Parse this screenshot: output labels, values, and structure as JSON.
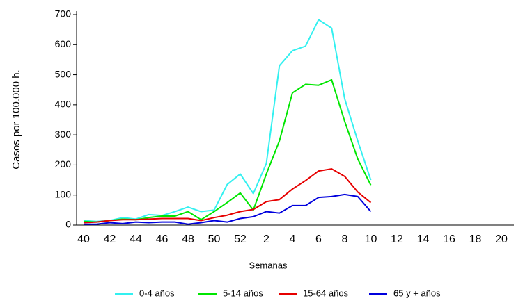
{
  "chart_data": {
    "type": "line",
    "xlabel": "Semanas",
    "ylabel": "Casos por 100.000 h.",
    "categories": [
      "40",
      null,
      "42",
      null,
      "44",
      null,
      "46",
      null,
      "48",
      null,
      "50",
      null,
      "52",
      null,
      "2",
      null,
      "4",
      null,
      "6",
      null,
      "8",
      null,
      "10",
      null,
      "12",
      null,
      "14",
      null,
      "16",
      null,
      "18",
      null,
      "20"
    ],
    "series": [
      {
        "name": "0-4 años",
        "color": "#33f0f0",
        "values": [
          15,
          12,
          15,
          25,
          20,
          35,
          32,
          45,
          60,
          45,
          50,
          135,
          170,
          105,
          205,
          530,
          580,
          595,
          683,
          655,
          420,
          280,
          150,
          null,
          null,
          null,
          null,
          null,
          null,
          null,
          null,
          null,
          null
        ]
      },
      {
        "name": "5-14 años",
        "color": "#00e600",
        "values": [
          12,
          10,
          15,
          20,
          18,
          25,
          30,
          30,
          45,
          18,
          45,
          75,
          107,
          50,
          170,
          280,
          440,
          468,
          465,
          483,
          345,
          220,
          133,
          null,
          null,
          null,
          null,
          null,
          null,
          null,
          null,
          null,
          null
        ]
      },
      {
        "name": "15-64 años",
        "color": "#e60000",
        "values": [
          8,
          10,
          15,
          18,
          18,
          20,
          22,
          22,
          22,
          15,
          25,
          33,
          45,
          52,
          78,
          85,
          120,
          148,
          180,
          187,
          162,
          110,
          75,
          null,
          null,
          null,
          null,
          null,
          null,
          null,
          null,
          null,
          null
        ]
      },
      {
        "name": "65 y + años",
        "color": "#0000dd",
        "values": [
          3,
          3,
          8,
          5,
          10,
          8,
          10,
          10,
          3,
          8,
          15,
          10,
          22,
          28,
          45,
          40,
          65,
          65,
          92,
          95,
          102,
          95,
          45,
          null,
          null,
          null,
          null,
          null,
          null,
          null,
          null,
          null,
          null
        ]
      }
    ],
    "ylim": [
      0,
      700
    ],
    "yticks": [
      0,
      100,
      200,
      300,
      400,
      500,
      600,
      700
    ],
    "grid": false,
    "legend": "bottom"
  }
}
